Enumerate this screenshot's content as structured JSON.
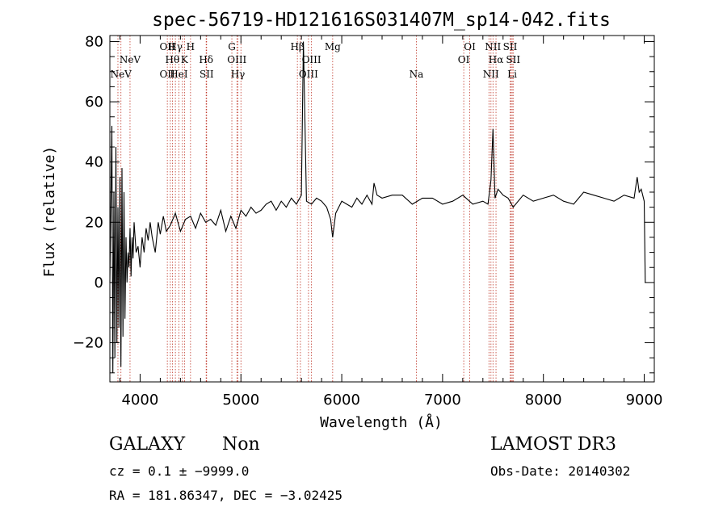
{
  "chart_data": {
    "type": "line",
    "title": "spec-56719-HD121616S031407M_sp14-042.fits",
    "xlabel": "Wavelength (Å)",
    "ylabel": "Flux (relative)",
    "xlim": [
      3700,
      9100
    ],
    "ylim": [
      -33,
      82
    ],
    "xticks": [
      4000,
      5000,
      6000,
      7000,
      8000,
      9000
    ],
    "xtick_labels": [
      "4000",
      "5000",
      "6000",
      "7000",
      "8000",
      "9000"
    ],
    "yticks": [
      -20,
      0,
      20,
      40,
      60,
      80
    ],
    "ytick_labels": [
      "−20",
      "0",
      "20",
      "40",
      "60",
      "80"
    ],
    "spectrum": {
      "x": [
        3700,
        3720,
        3730,
        3740,
        3750,
        3760,
        3770,
        3780,
        3790,
        3800,
        3810,
        3820,
        3830,
        3840,
        3850,
        3860,
        3870,
        3880,
        3890,
        3900,
        3910,
        3920,
        3930,
        3940,
        3960,
        3980,
        4000,
        4020,
        4040,
        4060,
        4080,
        4100,
        4120,
        4150,
        4180,
        4200,
        4230,
        4260,
        4300,
        4350,
        4400,
        4450,
        4500,
        4550,
        4600,
        4650,
        4700,
        4750,
        4800,
        4850,
        4900,
        4950,
        5000,
        5050,
        5100,
        5150,
        5200,
        5250,
        5300,
        5350,
        5400,
        5450,
        5500,
        5550,
        5600,
        5620,
        5650,
        5700,
        5750,
        5800,
        5850,
        5890,
        5910,
        5940,
        6000,
        6050,
        6100,
        6150,
        6200,
        6250,
        6300,
        6320,
        6350,
        6400,
        6500,
        6600,
        6700,
        6800,
        6900,
        7000,
        7100,
        7200,
        7300,
        7400,
        7450,
        7480,
        7500,
        7520,
        7550,
        7600,
        7650,
        7700,
        7800,
        7900,
        8000,
        8100,
        8200,
        8300,
        8400,
        8500,
        8600,
        8700,
        8800,
        8900,
        8930,
        8950,
        8970,
        9000,
        9010
      ],
      "y": [
        0,
        52,
        -30,
        30,
        -25,
        45,
        -20,
        25,
        -15,
        35,
        -28,
        38,
        -18,
        30,
        -12,
        15,
        0,
        10,
        5,
        18,
        2,
        15,
        8,
        20,
        10,
        12,
        5,
        15,
        10,
        18,
        14,
        20,
        15,
        10,
        20,
        16,
        22,
        17,
        19,
        23,
        17,
        21,
        22,
        18,
        23,
        20,
        21,
        19,
        24,
        17,
        22,
        18,
        24,
        22,
        25,
        23,
        24,
        26,
        27,
        24,
        27,
        25,
        28,
        26,
        29,
        80,
        27,
        26,
        28,
        27,
        25,
        21,
        15,
        23,
        27,
        26,
        25,
        28,
        26,
        29,
        26,
        33,
        29,
        28,
        29,
        29,
        26,
        28,
        28,
        26,
        27,
        29,
        26,
        27,
        26,
        34,
        51,
        28,
        31,
        29,
        28,
        25,
        29,
        27,
        28,
        29,
        27,
        26,
        30,
        29,
        28,
        27,
        29,
        28,
        35,
        30,
        31,
        27,
        0
      ]
    },
    "lines": [
      {
        "name": "NeV",
        "wl": 3810,
        "row": 3
      },
      {
        "name": "NeV",
        "wl": 3900,
        "row": 2
      },
      {
        "name": "OII",
        "wl": 4270,
        "row": 1
      },
      {
        "name": "Hγ",
        "wl": 4350,
        "row": 1
      },
      {
        "name": "H",
        "wl": 4500,
        "row": 1
      },
      {
        "name": "Hθ",
        "wl": 4320,
        "row": 2
      },
      {
        "name": "K",
        "wl": 4440,
        "row": 2
      },
      {
        "name": "OII",
        "wl": 4270,
        "row": 3
      },
      {
        "name": "HeI",
        "wl": 4385,
        "row": 3
      },
      {
        "name": "Hδ",
        "wl": 4655,
        "row": 2
      },
      {
        "name": "SII",
        "wl": 4660,
        "row": 3
      },
      {
        "name": "G",
        "wl": 4910,
        "row": 1
      },
      {
        "name": "OIII",
        "wl": 4960,
        "row": 2
      },
      {
        "name": "Hγ",
        "wl": 4970,
        "row": 3
      },
      {
        "name": "Hβ",
        "wl": 5560,
        "row": 1
      },
      {
        "name": "OIII",
        "wl": 5700,
        "row": 2
      },
      {
        "name": "OIII",
        "wl": 5670,
        "row": 3
      },
      {
        "name": "Mg",
        "wl": 5910,
        "row": 1
      },
      {
        "name": "Na",
        "wl": 6740,
        "row": 3
      },
      {
        "name": "OI",
        "wl": 7270,
        "row": 1
      },
      {
        "name": "OI",
        "wl": 7210,
        "row": 2
      },
      {
        "name": "NII",
        "wl": 7500,
        "row": 1
      },
      {
        "name": "SII",
        "wl": 7670,
        "row": 1
      },
      {
        "name": "Hα",
        "wl": 7530,
        "row": 2
      },
      {
        "name": "SII",
        "wl": 7700,
        "row": 2
      },
      {
        "name": "NII",
        "wl": 7480,
        "row": 3
      },
      {
        "name": "Li",
        "wl": 7690,
        "row": 3
      }
    ],
    "extra_ref_lines": [
      3780,
      4300,
      4420,
      5000,
      5590,
      7460,
      7680
    ]
  },
  "info": {
    "class": "GALAXY",
    "subclass": "Non",
    "survey": "LAMOST DR3",
    "cz": "cz = 0.1 ± −9999.0",
    "obs_date": "Obs-Date: 20140302",
    "radec": "RA = 181.86347, DEC =  −3.02425"
  }
}
